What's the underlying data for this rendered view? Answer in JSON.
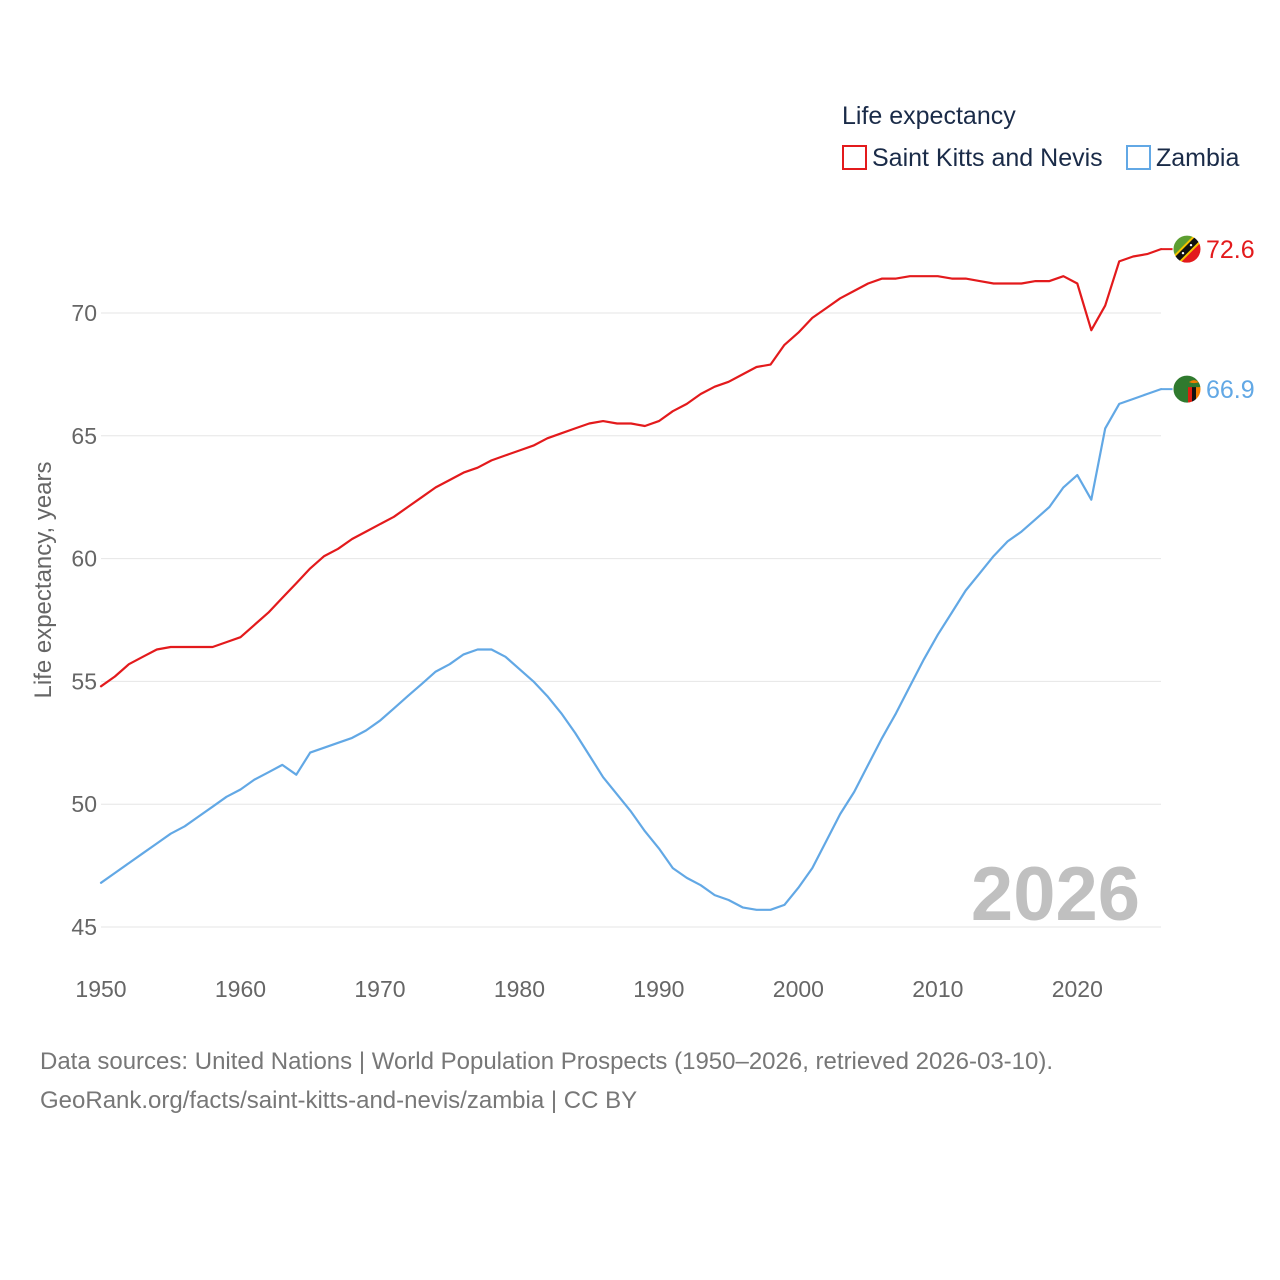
{
  "chart_data": {
    "type": "line",
    "legend_title": "Life expectancy",
    "legend_position": "top-right",
    "ylabel": "Life expectancy, years",
    "xlabel": "",
    "xlim": [
      1950,
      2026
    ],
    "ylim": [
      44.5,
      73
    ],
    "x_ticks": [
      1950,
      1960,
      1970,
      1980,
      1990,
      2000,
      2010,
      2020
    ],
    "y_ticks": [
      45,
      50,
      55,
      60,
      65,
      70
    ],
    "grid": true,
    "year_label": "2026",
    "series": [
      {
        "name": "Saint Kitts and Nevis",
        "color": "#e31a1c",
        "flag_icon": "saint-kitts-and-nevis-flag-icon",
        "end_label": "72.6",
        "x": [
          1950,
          1951,
          1952,
          1953,
          1954,
          1955,
          1956,
          1957,
          1958,
          1959,
          1960,
          1961,
          1962,
          1963,
          1964,
          1965,
          1966,
          1967,
          1968,
          1969,
          1970,
          1971,
          1972,
          1973,
          1974,
          1975,
          1976,
          1977,
          1978,
          1979,
          1980,
          1981,
          1982,
          1983,
          1984,
          1985,
          1986,
          1987,
          1988,
          1989,
          1990,
          1991,
          1992,
          1993,
          1994,
          1995,
          1996,
          1997,
          1998,
          1999,
          2000,
          2001,
          2002,
          2003,
          2004,
          2005,
          2006,
          2007,
          2008,
          2009,
          2010,
          2011,
          2012,
          2013,
          2014,
          2015,
          2016,
          2017,
          2018,
          2019,
          2020,
          2021,
          2022,
          2023,
          2024,
          2025,
          2026
        ],
        "values": [
          54.8,
          55.2,
          55.7,
          56.0,
          56.3,
          56.4,
          56.4,
          56.4,
          56.4,
          56.6,
          56.8,
          57.3,
          57.8,
          58.4,
          59.0,
          59.6,
          60.1,
          60.4,
          60.8,
          61.1,
          61.4,
          61.7,
          62.1,
          62.5,
          62.9,
          63.2,
          63.5,
          63.7,
          64.0,
          64.2,
          64.4,
          64.6,
          64.9,
          65.1,
          65.3,
          65.5,
          65.6,
          65.5,
          65.5,
          65.4,
          65.6,
          66.0,
          66.3,
          66.7,
          67.0,
          67.2,
          67.5,
          67.8,
          67.9,
          68.7,
          69.2,
          69.8,
          70.2,
          70.6,
          70.9,
          71.2,
          71.4,
          71.4,
          71.5,
          71.5,
          71.5,
          71.4,
          71.4,
          71.3,
          71.2,
          71.2,
          71.2,
          71.3,
          71.3,
          71.5,
          71.2,
          69.3,
          70.3,
          72.1,
          72.3,
          72.4,
          72.6
        ]
      },
      {
        "name": "Zambia",
        "color": "#62a8e5",
        "flag_icon": "zambia-flag-icon",
        "end_label": "66.9",
        "x": [
          1950,
          1951,
          1952,
          1953,
          1954,
          1955,
          1956,
          1957,
          1958,
          1959,
          1960,
          1961,
          1962,
          1963,
          1964,
          1965,
          1966,
          1967,
          1968,
          1969,
          1970,
          1971,
          1972,
          1973,
          1974,
          1975,
          1976,
          1977,
          1978,
          1979,
          1980,
          1981,
          1982,
          1983,
          1984,
          1985,
          1986,
          1987,
          1988,
          1989,
          1990,
          1991,
          1992,
          1993,
          1994,
          1995,
          1996,
          1997,
          1998,
          1999,
          2000,
          2001,
          2002,
          2003,
          2004,
          2005,
          2006,
          2007,
          2008,
          2009,
          2010,
          2011,
          2012,
          2013,
          2014,
          2015,
          2016,
          2017,
          2018,
          2019,
          2020,
          2021,
          2022,
          2023,
          2024,
          2025,
          2026
        ],
        "values": [
          46.8,
          47.2,
          47.6,
          48.0,
          48.4,
          48.8,
          49.1,
          49.5,
          49.9,
          50.3,
          50.6,
          51.0,
          51.3,
          51.6,
          51.2,
          52.1,
          52.3,
          52.5,
          52.7,
          53.0,
          53.4,
          53.9,
          54.4,
          54.9,
          55.4,
          55.7,
          56.1,
          56.3,
          56.3,
          56.0,
          55.5,
          55.0,
          54.4,
          53.7,
          52.9,
          52.0,
          51.1,
          50.4,
          49.7,
          48.9,
          48.2,
          47.4,
          47.0,
          46.7,
          46.3,
          46.1,
          45.8,
          45.7,
          45.7,
          45.9,
          46.6,
          47.4,
          48.5,
          49.6,
          50.5,
          51.6,
          52.7,
          53.7,
          54.8,
          55.9,
          56.9,
          57.8,
          58.7,
          59.4,
          60.1,
          60.7,
          61.1,
          61.6,
          62.1,
          62.9,
          63.4,
          62.4,
          65.3,
          66.3,
          66.5,
          66.7,
          66.9
        ]
      }
    ]
  },
  "footer": {
    "line1": "Data sources: United Nations | World Population Prospects (1950–2026, retrieved 2026-03-10).",
    "line2": "GeoRank.org/facts/saint-kitts-and-nevis/zambia | CC BY"
  }
}
